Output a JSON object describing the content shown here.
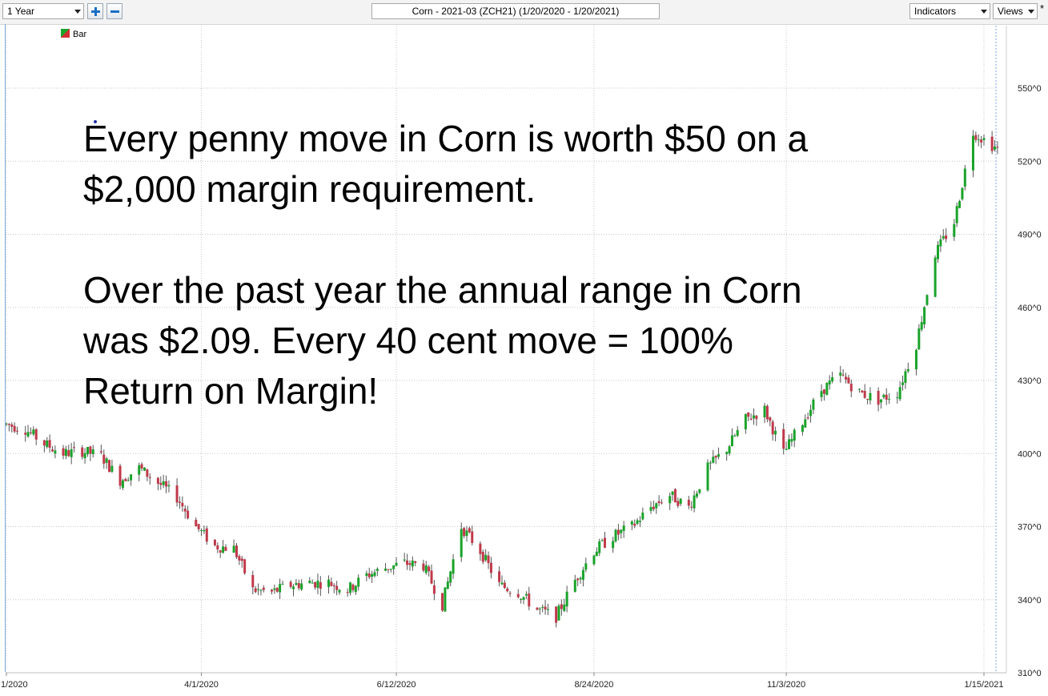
{
  "toolbar": {
    "period_select": "1 Year",
    "chart_title": "Corn - 2021-03 (ZCH21) (1/20/2020 - 1/20/2021)",
    "indicators_label": "Indicators",
    "views_label": "Views",
    "modified_marker": "*"
  },
  "legend": {
    "label": "Bar"
  },
  "annotation": {
    "text": "Every penny move in Corn is worth $50 on a\n$2,000 margin requirement.\n\nOver the past year the annual range in Corn\nwas $2.09.  Every 40 cent move = 100%\nReturn on Margin!"
  },
  "colors": {
    "up": "#1aa32a",
    "down": "#c0394a",
    "grid": "#c7c7c7",
    "cursor_line": "#7aa7e0",
    "background": "#ffffff"
  },
  "chart_data": {
    "type": "candlestick",
    "title": "Corn - 2021-03 (ZCH21) (1/20/2020 - 1/20/2021)",
    "series_name": "Bar",
    "ylim": [
      310,
      570
    ],
    "yticks": [
      310,
      340,
      370,
      400,
      430,
      460,
      490,
      520,
      550
    ],
    "ytick_labels": [
      "310^0",
      "340^0",
      "370^0",
      "400^0",
      "430^0",
      "460^0",
      "490^0",
      "520^0",
      "550^0"
    ],
    "xtick_labels": [
      "1/2020",
      "4/1/2020",
      "6/12/2020",
      "8/24/2020",
      "11/3/2020",
      "1/15/2021"
    ],
    "xtick_dates": [
      "2020-01-20",
      "2020-04-01",
      "2020-06-12",
      "2020-08-24",
      "2020-11-03",
      "2021-01-15"
    ],
    "grid": true,
    "close_path": [
      [
        "2020-01-20",
        412
      ],
      [
        "2020-01-27",
        410
      ],
      [
        "2020-02-03",
        404
      ],
      [
        "2020-02-10",
        400
      ],
      [
        "2020-02-17",
        401
      ],
      [
        "2020-02-24",
        399
      ],
      [
        "2020-03-02",
        389
      ],
      [
        "2020-03-09",
        394
      ],
      [
        "2020-03-16",
        388
      ],
      [
        "2020-03-23",
        382
      ],
      [
        "2020-03-30",
        370
      ],
      [
        "2020-04-06",
        362
      ],
      [
        "2020-04-13",
        361
      ],
      [
        "2020-04-20",
        344
      ],
      [
        "2020-04-27",
        343
      ],
      [
        "2020-05-04",
        346
      ],
      [
        "2020-05-11",
        347
      ],
      [
        "2020-05-18",
        347
      ],
      [
        "2020-05-25",
        344
      ],
      [
        "2020-06-01",
        350
      ],
      [
        "2020-06-08",
        353
      ],
      [
        "2020-06-15",
        355
      ],
      [
        "2020-06-22",
        354
      ],
      [
        "2020-06-29",
        338
      ],
      [
        "2020-07-06",
        370
      ],
      [
        "2020-07-13",
        360
      ],
      [
        "2020-07-20",
        346
      ],
      [
        "2020-07-27",
        343
      ],
      [
        "2020-08-03",
        336
      ],
      [
        "2020-08-10",
        333
      ],
      [
        "2020-08-17",
        348
      ],
      [
        "2020-08-24",
        360
      ],
      [
        "2020-08-31",
        366
      ],
      [
        "2020-09-07",
        370
      ],
      [
        "2020-09-14",
        378
      ],
      [
        "2020-09-21",
        383
      ],
      [
        "2020-09-28",
        378
      ],
      [
        "2020-10-05",
        394
      ],
      [
        "2020-10-12",
        402
      ],
      [
        "2020-10-19",
        414
      ],
      [
        "2020-10-26",
        418
      ],
      [
        "2020-11-02",
        400
      ],
      [
        "2020-11-09",
        413
      ],
      [
        "2020-11-16",
        426
      ],
      [
        "2020-11-23",
        432
      ],
      [
        "2020-11-30",
        425
      ],
      [
        "2020-12-07",
        422
      ],
      [
        "2020-12-14",
        425
      ],
      [
        "2020-12-21",
        445
      ],
      [
        "2020-12-28",
        482
      ],
      [
        "2021-01-04",
        495
      ],
      [
        "2021-01-11",
        532
      ],
      [
        "2021-01-20",
        525
      ]
    ],
    "low": 332,
    "high": 541
  }
}
